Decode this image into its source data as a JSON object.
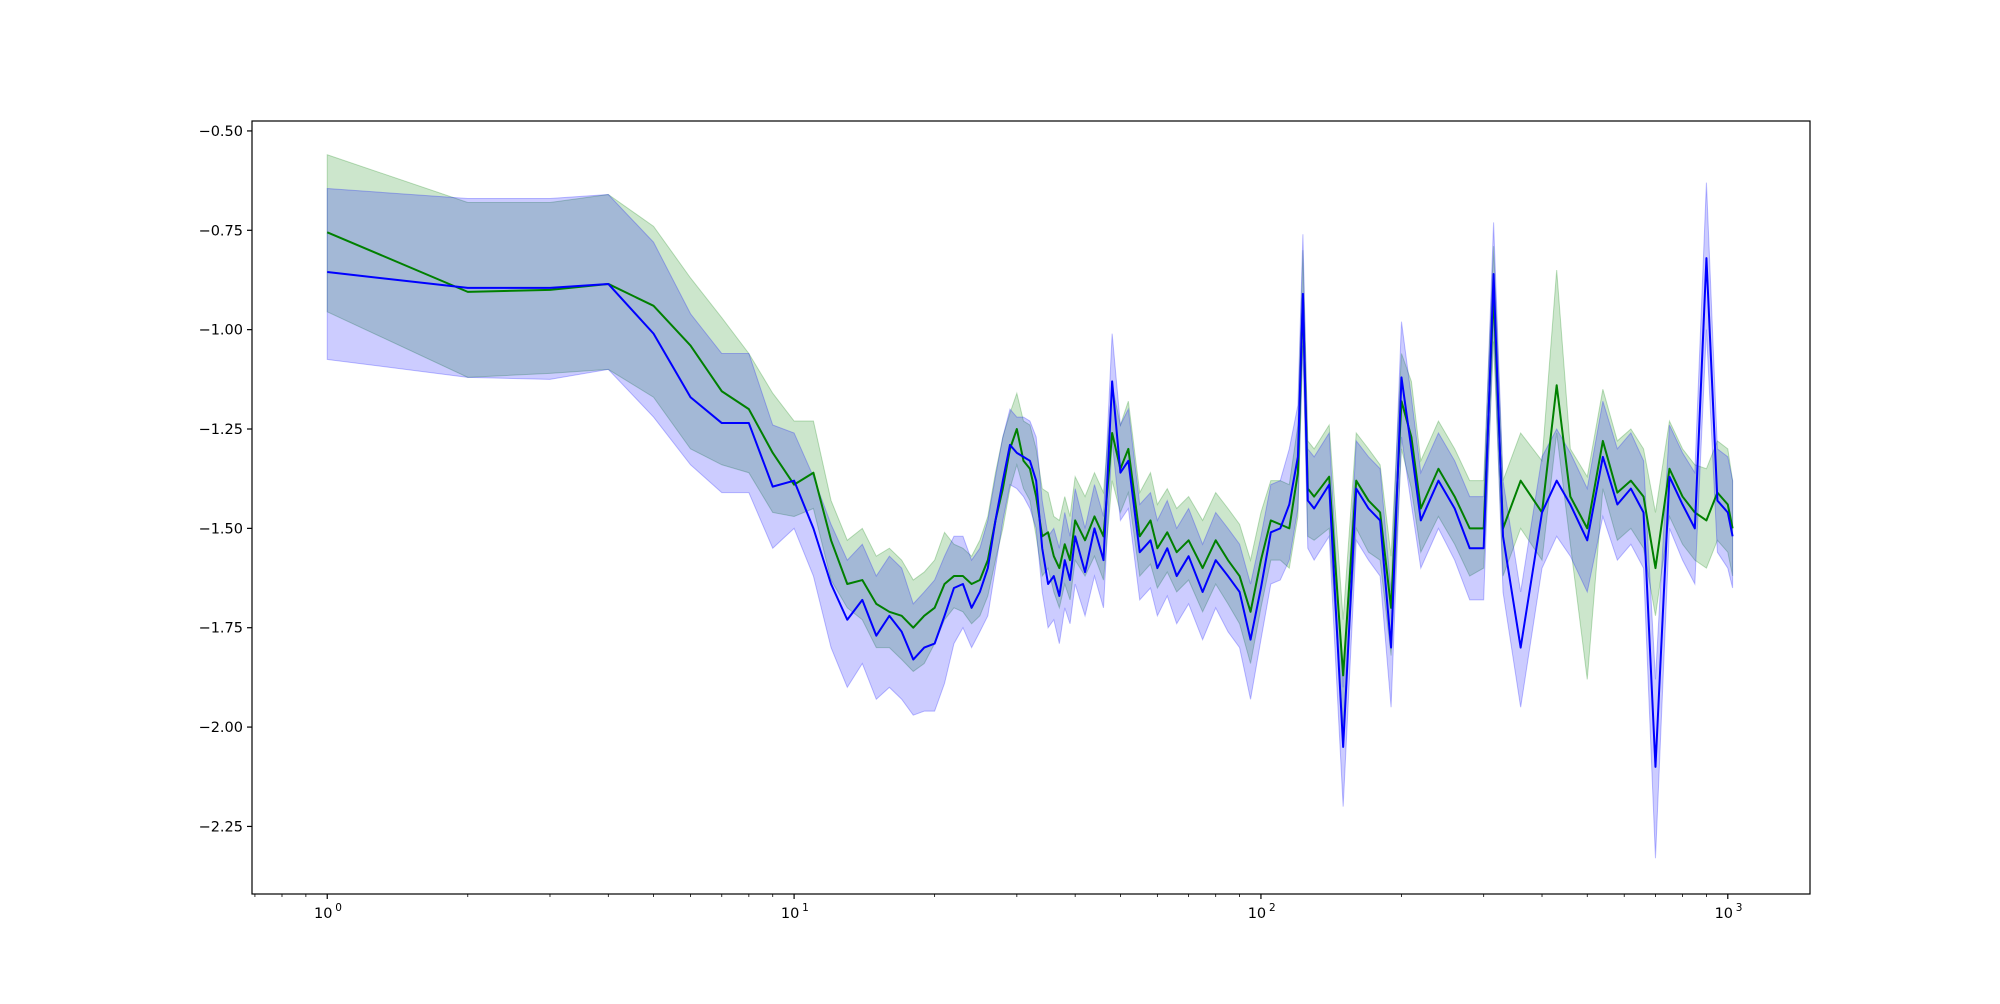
{
  "chart_data": {
    "type": "line",
    "title": "",
    "xlabel": "",
    "ylabel": "",
    "x_scale": "log",
    "xlim": [
      0.69,
      1500
    ],
    "ylim": [
      -2.42,
      -0.475
    ],
    "x_ticks": [
      {
        "value": 1,
        "base": "10",
        "exp": "0"
      },
      {
        "value": 10,
        "base": "10",
        "exp": "1"
      },
      {
        "value": 100,
        "base": "10",
        "exp": "2"
      },
      {
        "value": 1000,
        "base": "10",
        "exp": "3"
      }
    ],
    "y_ticks": [
      {
        "value": -0.5,
        "label": "−0.50"
      },
      {
        "value": -0.75,
        "label": "−0.75"
      },
      {
        "value": -1.0,
        "label": "−1.00"
      },
      {
        "value": -1.25,
        "label": "−1.25"
      },
      {
        "value": -1.5,
        "label": "−1.50"
      },
      {
        "value": -1.75,
        "label": "−1.75"
      },
      {
        "value": -2.0,
        "label": "−2.00"
      },
      {
        "value": -2.25,
        "label": "−2.25"
      }
    ],
    "grid": false,
    "legend": "none",
    "series": [
      {
        "color": "#008000",
        "band_color": "#008000",
        "band_opacity": 0.2,
        "x": [
          1,
          2,
          3,
          4,
          5,
          6,
          7,
          8,
          9,
          10,
          11,
          12,
          13,
          14,
          15,
          16,
          17,
          18,
          19,
          20,
          21,
          22,
          23,
          24,
          25,
          26,
          27,
          28,
          29,
          30,
          31,
          32,
          33,
          34,
          35,
          36,
          37,
          38,
          39,
          40,
          42,
          44,
          46,
          48,
          50,
          52,
          55,
          58,
          60,
          63,
          66,
          70,
          75,
          80,
          85,
          90,
          95,
          100,
          105,
          110,
          115,
          120,
          123,
          126,
          130,
          140,
          150,
          160,
          170,
          180,
          190,
          200,
          210,
          220,
          240,
          260,
          280,
          300,
          315,
          330,
          360,
          400,
          430,
          460,
          500,
          540,
          580,
          620,
          660,
          700,
          750,
          800,
          850,
          900,
          950,
          1000,
          1024
        ],
        "y": [
          -0.755,
          -0.905,
          -0.9,
          -0.885,
          -0.94,
          -1.04,
          -1.155,
          -1.2,
          -1.31,
          -1.39,
          -1.36,
          -1.53,
          -1.64,
          -1.63,
          -1.69,
          -1.71,
          -1.72,
          -1.75,
          -1.72,
          -1.7,
          -1.64,
          -1.62,
          -1.62,
          -1.64,
          -1.63,
          -1.58,
          -1.48,
          -1.4,
          -1.3,
          -1.25,
          -1.33,
          -1.35,
          -1.42,
          -1.52,
          -1.51,
          -1.57,
          -1.6,
          -1.54,
          -1.58,
          -1.48,
          -1.53,
          -1.47,
          -1.52,
          -1.26,
          -1.35,
          -1.3,
          -1.52,
          -1.48,
          -1.55,
          -1.51,
          -1.56,
          -1.53,
          -1.6,
          -1.53,
          -1.58,
          -1.62,
          -1.71,
          -1.58,
          -1.48,
          -1.49,
          -1.5,
          -1.36,
          -0.92,
          -1.4,
          -1.42,
          -1.37,
          -1.87,
          -1.38,
          -1.43,
          -1.46,
          -1.7,
          -1.18,
          -1.27,
          -1.45,
          -1.35,
          -1.42,
          -1.5,
          -1.5,
          -0.91,
          -1.5,
          -1.38,
          -1.46,
          -1.14,
          -1.42,
          -1.5,
          -1.28,
          -1.41,
          -1.38,
          -1.42,
          -1.6,
          -1.35,
          -1.42,
          -1.46,
          -1.48,
          -1.41,
          -1.44,
          -1.5
        ]
      },
      {
        "color": "#0000ff",
        "band_color": "#0000ff",
        "band_opacity": 0.2,
        "x": [
          1,
          2,
          3,
          4,
          5,
          6,
          7,
          8,
          9,
          10,
          11,
          12,
          13,
          14,
          15,
          16,
          17,
          18,
          19,
          20,
          21,
          22,
          23,
          24,
          25,
          26,
          27,
          28,
          29,
          30,
          31,
          32,
          33,
          34,
          35,
          36,
          37,
          38,
          39,
          40,
          42,
          44,
          46,
          48,
          50,
          52,
          55,
          58,
          60,
          63,
          66,
          70,
          75,
          80,
          85,
          90,
          95,
          100,
          105,
          110,
          115,
          120,
          123,
          126,
          130,
          140,
          150,
          160,
          170,
          180,
          190,
          200,
          210,
          220,
          240,
          260,
          280,
          300,
          315,
          330,
          360,
          400,
          430,
          460,
          500,
          540,
          580,
          620,
          660,
          700,
          750,
          800,
          850,
          900,
          950,
          1000,
          1024
        ],
        "y": [
          -0.855,
          -0.895,
          -0.895,
          -0.885,
          -1.01,
          -1.17,
          -1.235,
          -1.235,
          -1.395,
          -1.38,
          -1.5,
          -1.64,
          -1.73,
          -1.68,
          -1.77,
          -1.72,
          -1.76,
          -1.83,
          -1.8,
          -1.79,
          -1.72,
          -1.65,
          -1.64,
          -1.7,
          -1.66,
          -1.6,
          -1.48,
          -1.38,
          -1.29,
          -1.31,
          -1.32,
          -1.33,
          -1.38,
          -1.55,
          -1.64,
          -1.62,
          -1.67,
          -1.58,
          -1.63,
          -1.52,
          -1.61,
          -1.5,
          -1.58,
          -1.13,
          -1.36,
          -1.33,
          -1.56,
          -1.53,
          -1.6,
          -1.55,
          -1.62,
          -1.57,
          -1.66,
          -1.58,
          -1.62,
          -1.66,
          -1.78,
          -1.65,
          -1.51,
          -1.5,
          -1.44,
          -1.32,
          -0.91,
          -1.43,
          -1.45,
          -1.39,
          -2.05,
          -1.4,
          -1.45,
          -1.48,
          -1.8,
          -1.12,
          -1.3,
          -1.48,
          -1.38,
          -1.45,
          -1.55,
          -1.55,
          -0.86,
          -1.52,
          -1.8,
          -1.46,
          -1.38,
          -1.44,
          -1.53,
          -1.32,
          -1.44,
          -1.4,
          -1.46,
          -2.1,
          -1.37,
          -1.44,
          -1.5,
          -0.82,
          -1.43,
          -1.46,
          -1.52
        ]
      }
    ],
    "bands": [
      {
        "series": 0,
        "lower": [
          -0.955,
          -1.12,
          -1.11,
          -1.1,
          -1.17,
          -1.3,
          -1.34,
          -1.36,
          -1.46,
          -1.47,
          -1.45,
          -1.63,
          -1.7,
          -1.73,
          -1.8,
          -1.8,
          -1.83,
          -1.86,
          -1.84,
          -1.79,
          -1.73,
          -1.7,
          -1.71,
          -1.74,
          -1.72,
          -1.67,
          -1.58,
          -1.5,
          -1.4,
          -1.34,
          -1.4,
          -1.43,
          -1.52,
          -1.62,
          -1.6,
          -1.66,
          -1.7,
          -1.64,
          -1.68,
          -1.58,
          -1.62,
          -1.57,
          -1.63,
          -1.38,
          -1.46,
          -1.41,
          -1.62,
          -1.59,
          -1.65,
          -1.61,
          -1.66,
          -1.63,
          -1.71,
          -1.64,
          -1.69,
          -1.74,
          -1.84,
          -1.7,
          -1.58,
          -1.58,
          -1.6,
          -1.47,
          -1.02,
          -1.52,
          -1.53,
          -1.5,
          -2.0,
          -1.5,
          -1.56,
          -1.58,
          -1.82,
          -1.3,
          -1.4,
          -1.56,
          -1.47,
          -1.54,
          -1.62,
          -1.6,
          -1.03,
          -1.62,
          -1.5,
          -1.58,
          -1.26,
          -1.54,
          -1.88,
          -1.4,
          -1.53,
          -1.5,
          -1.55,
          -1.72,
          -1.47,
          -1.54,
          -1.58,
          -1.6,
          -1.53,
          -1.56,
          -1.62
        ],
        "upper": [
          -0.56,
          -0.68,
          -0.68,
          -0.66,
          -0.74,
          -0.87,
          -0.97,
          -1.06,
          -1.16,
          -1.23,
          -1.23,
          -1.43,
          -1.53,
          -1.5,
          -1.57,
          -1.55,
          -1.58,
          -1.63,
          -1.61,
          -1.58,
          -1.51,
          -1.54,
          -1.55,
          -1.57,
          -1.53,
          -1.47,
          -1.36,
          -1.27,
          -1.21,
          -1.16,
          -1.23,
          -1.24,
          -1.3,
          -1.4,
          -1.41,
          -1.47,
          -1.48,
          -1.42,
          -1.47,
          -1.37,
          -1.42,
          -1.36,
          -1.41,
          -1.14,
          -1.24,
          -1.18,
          -1.41,
          -1.36,
          -1.44,
          -1.4,
          -1.45,
          -1.42,
          -1.48,
          -1.41,
          -1.45,
          -1.49,
          -1.58,
          -1.46,
          -1.38,
          -1.38,
          -1.39,
          -1.24,
          -0.8,
          -1.28,
          -1.3,
          -1.24,
          -1.73,
          -1.26,
          -1.3,
          -1.34,
          -1.57,
          -1.06,
          -1.13,
          -1.33,
          -1.23,
          -1.3,
          -1.38,
          -1.38,
          -0.79,
          -1.38,
          -1.26,
          -1.33,
          -0.85,
          -1.3,
          -1.37,
          -1.15,
          -1.28,
          -1.25,
          -1.3,
          -1.46,
          -1.23,
          -1.3,
          -1.34,
          -1.35,
          -1.28,
          -1.3,
          -1.38
        ]
      },
      {
        "series": 1,
        "lower": [
          -1.075,
          -1.12,
          -1.125,
          -1.1,
          -1.22,
          -1.34,
          -1.41,
          -1.41,
          -1.55,
          -1.5,
          -1.62,
          -1.8,
          -1.9,
          -1.84,
          -1.93,
          -1.9,
          -1.93,
          -1.97,
          -1.96,
          -1.96,
          -1.89,
          -1.79,
          -1.75,
          -1.8,
          -1.76,
          -1.72,
          -1.6,
          -1.48,
          -1.39,
          -1.4,
          -1.42,
          -1.45,
          -1.5,
          -1.66,
          -1.75,
          -1.73,
          -1.79,
          -1.7,
          -1.74,
          -1.64,
          -1.72,
          -1.62,
          -1.7,
          -1.28,
          -1.48,
          -1.45,
          -1.68,
          -1.65,
          -1.72,
          -1.67,
          -1.74,
          -1.69,
          -1.78,
          -1.7,
          -1.76,
          -1.8,
          -1.93,
          -1.78,
          -1.64,
          -1.63,
          -1.58,
          -1.45,
          -1.04,
          -1.55,
          -1.58,
          -1.52,
          -2.2,
          -1.53,
          -1.58,
          -1.62,
          -1.95,
          -1.27,
          -1.44,
          -1.6,
          -1.5,
          -1.58,
          -1.68,
          -1.68,
          -0.98,
          -1.66,
          -1.95,
          -1.6,
          -1.52,
          -1.57,
          -1.66,
          -1.47,
          -1.58,
          -1.54,
          -1.6,
          -2.33,
          -1.5,
          -1.58,
          -1.64,
          -1.0,
          -1.56,
          -1.6,
          -1.65
        ],
        "upper": [
          -0.645,
          -0.67,
          -0.67,
          -0.66,
          -0.78,
          -0.96,
          -1.06,
          -1.06,
          -1.24,
          -1.26,
          -1.37,
          -1.49,
          -1.58,
          -1.54,
          -1.62,
          -1.57,
          -1.6,
          -1.69,
          -1.66,
          -1.63,
          -1.57,
          -1.52,
          -1.52,
          -1.58,
          -1.55,
          -1.48,
          -1.37,
          -1.27,
          -1.2,
          -1.22,
          -1.22,
          -1.23,
          -1.27,
          -1.43,
          -1.52,
          -1.5,
          -1.55,
          -1.46,
          -1.52,
          -1.4,
          -1.5,
          -1.39,
          -1.47,
          -1.01,
          -1.24,
          -1.2,
          -1.44,
          -1.41,
          -1.48,
          -1.43,
          -1.5,
          -1.45,
          -1.54,
          -1.46,
          -1.5,
          -1.54,
          -1.64,
          -1.52,
          -1.39,
          -1.38,
          -1.3,
          -1.19,
          -0.76,
          -1.3,
          -1.32,
          -1.26,
          -1.9,
          -1.28,
          -1.32,
          -1.35,
          -1.66,
          -0.98,
          -1.17,
          -1.36,
          -1.26,
          -1.33,
          -1.42,
          -1.42,
          -0.73,
          -1.38,
          -1.66,
          -1.32,
          -1.25,
          -1.31,
          -1.4,
          -1.18,
          -1.3,
          -1.26,
          -1.33,
          -1.88,
          -1.24,
          -1.31,
          -1.36,
          -0.63,
          -1.3,
          -1.32,
          -1.38
        ]
      }
    ]
  }
}
